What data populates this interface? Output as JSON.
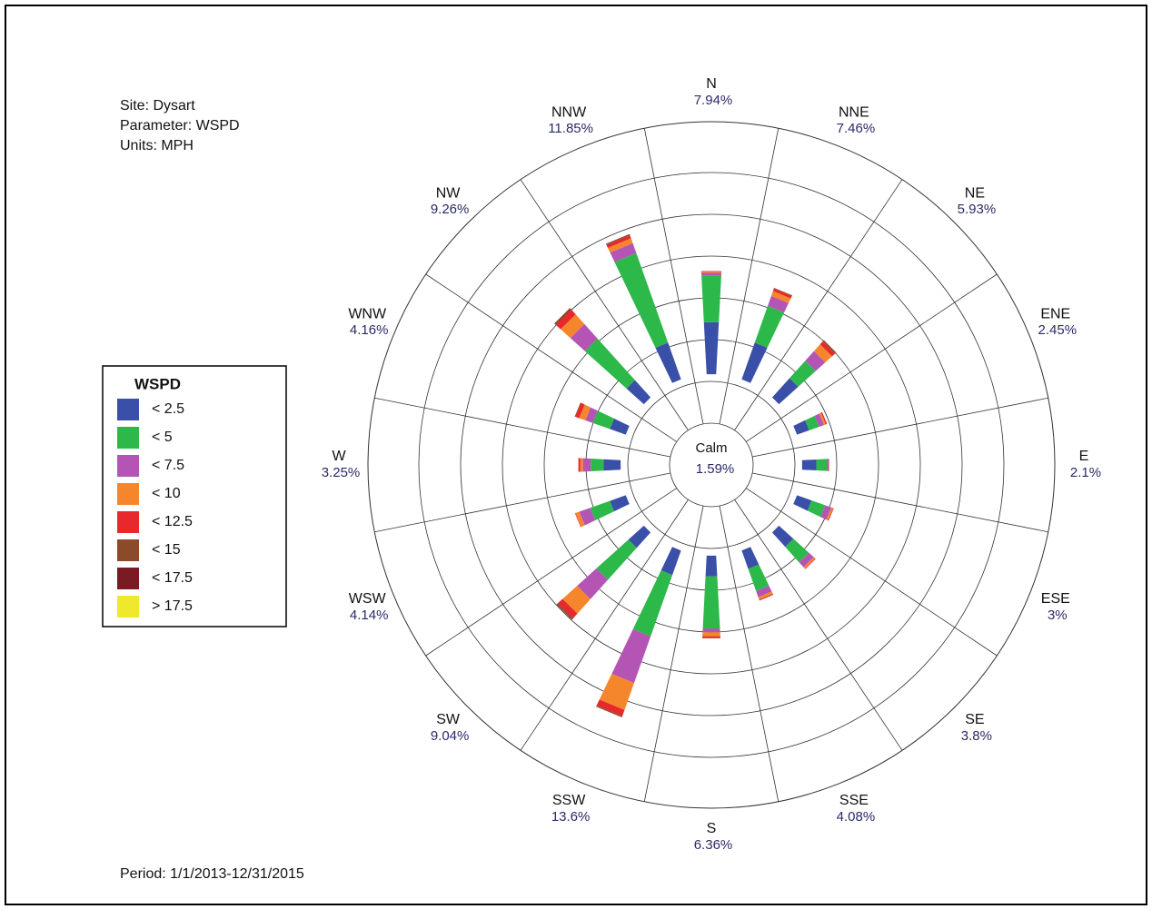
{
  "chart_data": {
    "type": "windrose",
    "info": [
      "Site: Dysart",
      "Parameter: WSPD",
      "Units: MPH"
    ],
    "period": "Period: 1/1/2013-12/31/2015",
    "calm_label": "Calm",
    "calm_value_label": "1.59%",
    "legend_title": "WSPD",
    "categories": [
      "N",
      "NNE",
      "NE",
      "ENE",
      "E",
      "ESE",
      "SE",
      "SSE",
      "S",
      "SSW",
      "SW",
      "WSW",
      "W",
      "WNW",
      "NW",
      "NNW"
    ],
    "category_labels": [
      "7.94%",
      "7.46%",
      "5.93%",
      "2.45%",
      "2.1%",
      "3%",
      "3.8%",
      "4.08%",
      "6.36%",
      "13.6%",
      "9.04%",
      "4.14%",
      "3.25%",
      "4.16%",
      "9.26%",
      "11.85%"
    ],
    "rlim": [
      0,
      19.4
    ],
    "series": [
      {
        "name": "< 2.5",
        "color": "#3a4fa8",
        "values": [
          4.0,
          3.0,
          2.0,
          1.0,
          1.1,
          1.2,
          1.5,
          1.5,
          1.6,
          2.0,
          1.6,
          1.3,
          1.3,
          1.3,
          1.8,
          3.0
        ]
      },
      {
        "name": "< 5",
        "color": "#2db84a",
        "values": [
          3.6,
          3.0,
          1.8,
          0.8,
          0.8,
          1.1,
          1.6,
          1.8,
          4.0,
          5.0,
          3.3,
          1.6,
          1.0,
          1.4,
          4.3,
          7.3
        ]
      },
      {
        "name": "< 7.5",
        "color": "#b455b5",
        "values": [
          0.2,
          0.8,
          1.0,
          0.4,
          0.15,
          0.5,
          0.5,
          0.5,
          0.3,
          3.8,
          2.0,
          0.9,
          0.6,
          0.6,
          1.5,
          0.8
        ]
      },
      {
        "name": "< 10",
        "color": "#f5862b",
        "values": [
          0.1,
          0.4,
          0.7,
          0.15,
          0.05,
          0.15,
          0.15,
          0.2,
          0.3,
          2.2,
          1.5,
          0.3,
          0.2,
          0.5,
          1.0,
          0.4
        ]
      },
      {
        "name": "< 12.5",
        "color": "#e8282d",
        "values": [
          0.04,
          0.2,
          0.3,
          0.1,
          0,
          0.05,
          0.05,
          0.08,
          0.16,
          0.5,
          0.5,
          0.04,
          0.15,
          0.3,
          0.5,
          0.25
        ]
      },
      {
        "name": "< 15",
        "color": "#8b4a2a",
        "values": [
          0,
          0.06,
          0.13,
          0,
          0,
          0,
          0,
          0,
          0,
          0.1,
          0.14,
          0,
          0,
          0.06,
          0.16,
          0.1
        ]
      },
      {
        "name": "< 17.5",
        "color": "#7a1a22",
        "values": [
          0,
          0,
          0,
          0,
          0,
          0,
          0,
          0,
          0,
          0,
          0,
          0,
          0,
          0,
          0,
          0
        ]
      },
      {
        "name": "> 17.5",
        "color": "#f0e82a",
        "values": [
          0,
          0,
          0,
          0,
          0,
          0,
          0,
          0,
          0,
          0,
          0,
          0,
          0,
          0,
          0,
          0
        ]
      }
    ]
  }
}
